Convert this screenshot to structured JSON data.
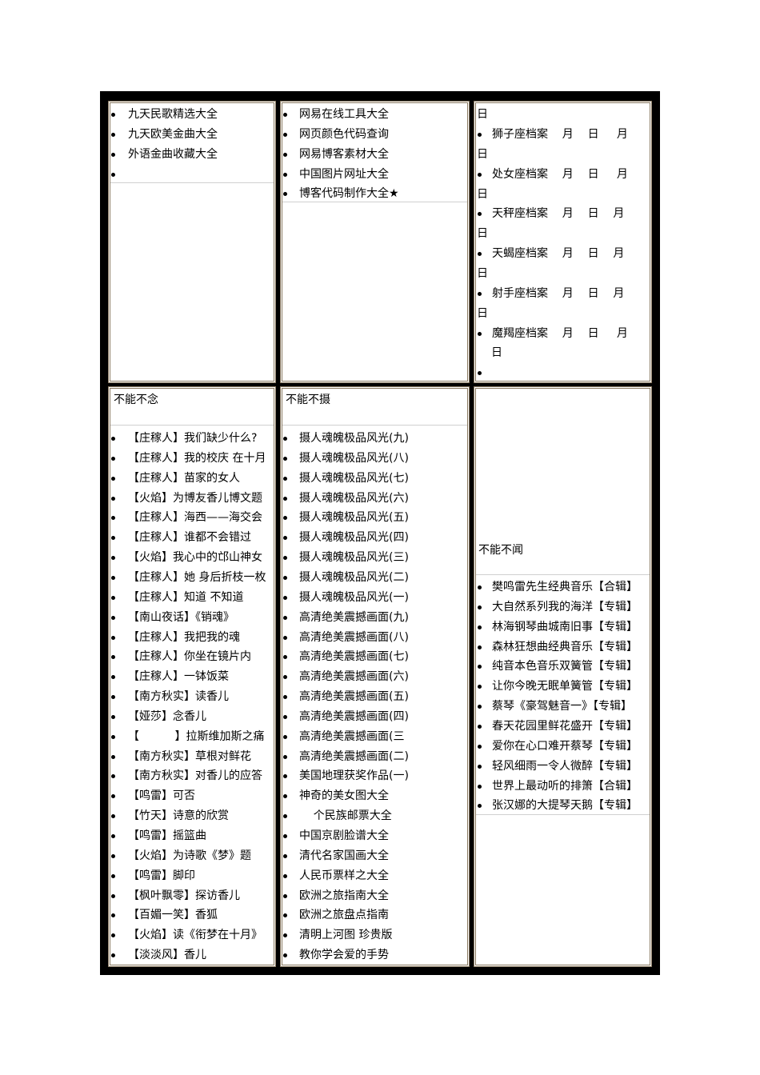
{
  "top": {
    "col1": {
      "items": [
        "九天民歌精选大全",
        "九天欧美金曲大全",
        "外语金曲收藏大全"
      ]
    },
    "col2": {
      "items": [
        "网易在线工具大全",
        "网页颜色代码查询",
        "网易博客素材大全",
        "中国图片网址大全",
        "博客代码制作大全★"
      ]
    },
    "col3": {
      "lead": "日",
      "items": [
        {
          "line1": "狮子座档案    月    日     月",
          "line2": "日"
        },
        {
          "line1": "处女座档案    月    日     月",
          "line2": "日"
        },
        {
          "line1": "天秤座档案    月    日    月",
          "line2": "日"
        },
        {
          "line1": "天蝎座档案    月    日    月",
          "line2": "日"
        },
        {
          "line1": "射手座档案    月    日    月",
          "line2": "日"
        },
        {
          "line1": "魔羯座档案    月    日     月",
          "line2": "日"
        }
      ]
    }
  },
  "bottom": {
    "col1": {
      "heading": "不能不念",
      "items": [
        "【庄稼人】我们缺少什么?",
        "【庄稼人】我的校庆 在十月",
        "【庄稼人】苗家的女人",
        "【火焰】为博友香儿博文题",
        "【庄稼人】海西——海交会",
        "【庄稼人】谁都不会错过",
        "【火焰】我心中的邙山神女",
        "【庄稼人】她 身后折枝一枚",
        "【庄稼人】知道 不知道",
        "【南山夜话】《销魂》",
        "【庄稼人】我把我的魂",
        "【庄稼人】你坐在镜片内",
        "【庄稼人】一钵饭菜",
        "【南方秋实】读香儿",
        "【娅莎】念香儿",
        "【          】拉斯维加斯之痛",
        "【南方秋实】草根对鲜花",
        "【南方秋实】对香儿的应答",
        "【鸣雷】可否",
        "【竹天】诗意的欣赏",
        "【鸣雷】摇篮曲",
        "【火焰】为诗歌《梦》题",
        "【鸣雷】脚印",
        "【枫叶飘零】探访香儿",
        "【百媚一笑】香狐",
        "【火焰】读《衔梦在十月》",
        "【淡淡风】香儿"
      ]
    },
    "col2": {
      "heading": "不能不摄",
      "items": [
        "摄人魂魄极品风光(九)",
        "摄人魂魄极品风光(八)",
        "摄人魂魄极品风光(七)",
        "摄人魂魄极品风光(六)",
        "摄人魂魄极品风光(五)",
        "摄人魂魄极品风光(四)",
        "摄人魂魄极品风光(三)",
        "摄人魂魄极品风光(二)",
        "摄人魂魄极品风光(一)",
        "高清绝美震撼画面(九)",
        "高清绝美震撼画面(八)",
        "高清绝美震撼画面(七)",
        "高清绝美震撼画面(六)",
        "高清绝美震撼画面(五)",
        "高清绝美震撼画面(四)",
        "高清绝美震撼画面(三",
        "高清绝美震撼画面(二)",
        "美国地理获奖作品(一)",
        "神奇的美女图大全",
        "    个民族邮票大全",
        "中国京剧脸谱大全",
        "清代名家国画大全",
        "人民币票样之大全",
        "欧洲之旅指南大全",
        "欧洲之旅盘点指南",
        "清明上河图 珍贵版",
        "教你学会爱的手势"
      ]
    },
    "col3": {
      "heading": "不能不闻",
      "items": [
        "樊鸣雷先生经典音乐【合辑】",
        "大自然系列我的海洋【专辑】",
        "林海钢琴曲城南旧事【专辑】",
        "森林狂想曲经典音乐【专辑】",
        "纯音本色音乐双簧管【专辑】",
        "让你今晚无眠单簧管【专辑】",
        "蔡琴《豪驾魅音一》【专辑】",
        "春天花园里鲜花盛开【专辑】",
        "爱你在心口难开蔡琴【专辑】",
        "轻风细雨一令人微醉【专辑】",
        "世界上最动听的排箫【合辑】",
        "张汉娜的大提琴天鹅【专辑】"
      ]
    }
  }
}
